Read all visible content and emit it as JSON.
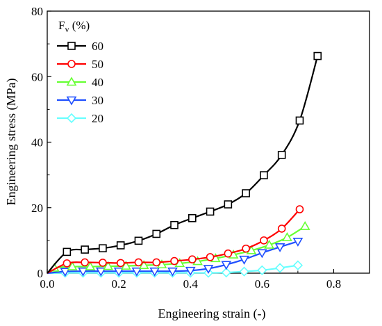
{
  "chart_data": {
    "type": "line",
    "title": "",
    "xlabel": "Engineering strain (-)",
    "ylabel": "Engineering stress (MPa)",
    "xlim": [
      0.0,
      0.9
    ],
    "ylim": [
      0,
      80
    ],
    "xticks": [
      "0.0",
      "0.2",
      "0.4",
      "0.6",
      "0.8"
    ],
    "yticks": [
      "0",
      "20",
      "40",
      "60",
      "80"
    ],
    "grid": false,
    "legend_title_main": "F",
    "legend_title_sub": "v",
    "legend_title_unit": " (%)",
    "legend_position": "top-left",
    "series": [
      {
        "name": "60",
        "color": "#000000",
        "marker": "square",
        "x": [
          0.0,
          0.055,
          0.105,
          0.155,
          0.205,
          0.255,
          0.305,
          0.355,
          0.405,
          0.455,
          0.505,
          0.555,
          0.605,
          0.655,
          0.705,
          0.755
        ],
        "y": [
          0.0,
          6.5,
          7.2,
          7.6,
          8.5,
          9.9,
          12.0,
          14.7,
          16.8,
          18.8,
          21.0,
          24.4,
          29.9,
          36.1,
          46.6,
          66.3
        ]
      },
      {
        "name": "50",
        "color": "#ff0000",
        "marker": "circle",
        "x": [
          0.0,
          0.055,
          0.105,
          0.155,
          0.205,
          0.255,
          0.305,
          0.355,
          0.405,
          0.455,
          0.505,
          0.555,
          0.605,
          0.655,
          0.705
        ],
        "y": [
          0.0,
          3.0,
          3.3,
          3.2,
          3.1,
          3.3,
          3.3,
          3.7,
          4.2,
          4.9,
          6.0,
          7.5,
          10.0,
          13.6,
          19.5
        ]
      },
      {
        "name": "40",
        "color": "#66ff33",
        "marker": "triangle-up",
        "x": [
          0.0,
          0.02,
          0.07,
          0.12,
          0.17,
          0.22,
          0.27,
          0.32,
          0.37,
          0.42,
          0.47,
          0.52,
          0.57,
          0.62,
          0.67,
          0.72
        ],
        "y": [
          0.0,
          1.6,
          2.0,
          2.0,
          2.1,
          2.2,
          2.4,
          2.6,
          3.0,
          3.6,
          4.5,
          5.6,
          6.9,
          8.6,
          10.9,
          14.3
        ]
      },
      {
        "name": "30",
        "color": "#1f4fff",
        "marker": "triangle-down",
        "x": [
          0.0,
          0.05,
          0.1,
          0.15,
          0.2,
          0.25,
          0.3,
          0.35,
          0.4,
          0.45,
          0.5,
          0.55,
          0.6,
          0.65,
          0.7
        ],
        "y": [
          0.0,
          0.5,
          0.6,
          0.6,
          0.6,
          0.6,
          0.6,
          0.6,
          0.8,
          1.4,
          2.6,
          4.2,
          6.2,
          8.0,
          9.7
        ]
      },
      {
        "name": "20",
        "color": "#66ffff",
        "marker": "diamond",
        "x": [
          0.0,
          0.05,
          0.1,
          0.15,
          0.2,
          0.25,
          0.3,
          0.35,
          0.4,
          0.45,
          0.5,
          0.55,
          0.6,
          0.65,
          0.7
        ],
        "y": [
          0.0,
          0.1,
          0.1,
          0.1,
          0.1,
          0.1,
          0.1,
          0.1,
          0.1,
          0.1,
          0.2,
          0.5,
          0.9,
          1.6,
          2.4
        ]
      }
    ]
  }
}
